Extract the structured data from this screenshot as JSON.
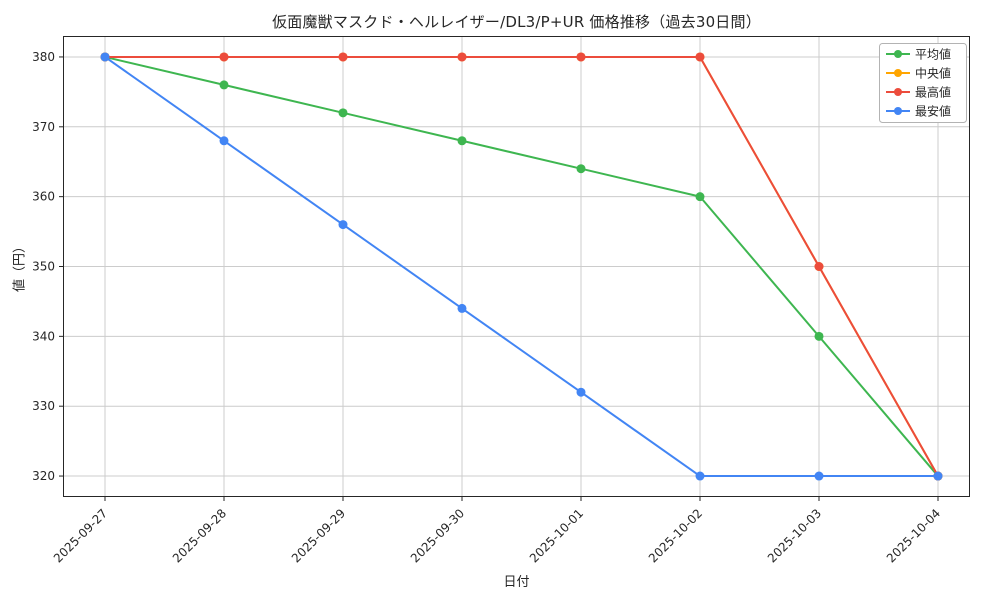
{
  "chart_data": {
    "type": "line",
    "title": "仮面魔獣マスクド・ヘルレイザー/DL3/P+UR 価格推移（過去30日間）",
    "xlabel": "日付",
    "ylabel": "値（円）",
    "categories": [
      "2025-09-27",
      "2025-09-28",
      "2025-09-29",
      "2025-09-30",
      "2025-10-01",
      "2025-10-02",
      "2025-10-03",
      "2025-10-04"
    ],
    "yticks": [
      320,
      330,
      340,
      350,
      360,
      370,
      380
    ],
    "ylim": [
      317,
      383
    ],
    "grid": true,
    "legend_position": "upper right",
    "series": [
      {
        "name": "平均値",
        "key": "average",
        "color": "#3eb650",
        "values": [
          380,
          376,
          372,
          368,
          364,
          360,
          340,
          320
        ]
      },
      {
        "name": "中央値",
        "key": "median",
        "color": "#ffa500",
        "values": [
          380,
          380,
          380,
          380,
          380,
          380,
          350,
          320
        ]
      },
      {
        "name": "最高値",
        "key": "max",
        "color": "#ec4c3c",
        "values": [
          380,
          380,
          380,
          380,
          380,
          380,
          350,
          320
        ]
      },
      {
        "name": "最安値",
        "key": "min",
        "color": "#4285f4",
        "values": [
          380,
          368,
          356,
          344,
          332,
          320,
          320,
          320
        ]
      }
    ],
    "colors": {
      "background": "#ffffff",
      "grid": "#cccccc",
      "axis": "#262626",
      "text": "#262626",
      "legend_border": "#b3b3b3"
    }
  }
}
